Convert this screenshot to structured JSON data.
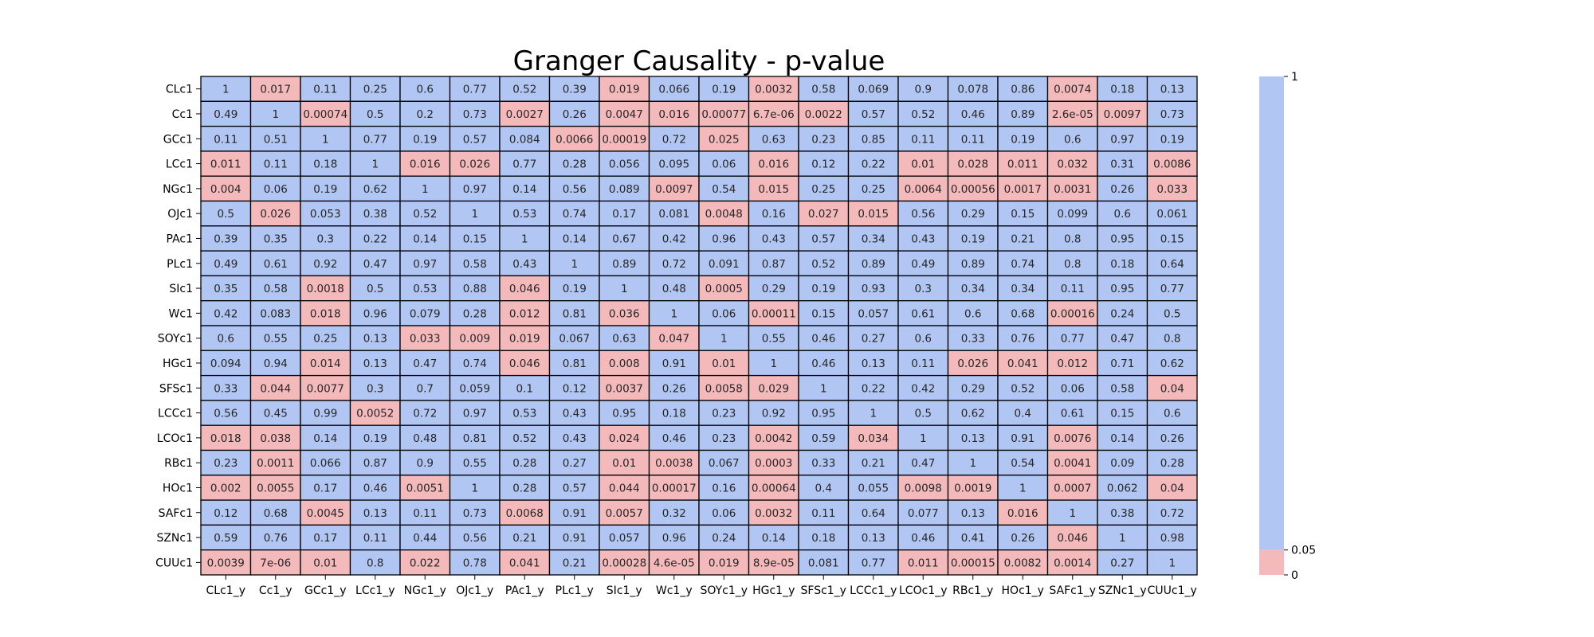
{
  "chart_data": {
    "type": "heatmap",
    "title": "Granger Causality - p-value",
    "xlabel": "",
    "ylabel": "",
    "row_labels": [
      "CLc1",
      "Cc1",
      "GCc1",
      "LCc1",
      "NGc1",
      "OJc1",
      "PAc1",
      "PLc1",
      "SIc1",
      "Wc1",
      "SOYc1",
      "HGc1",
      "SFSc1",
      "LCCc1",
      "LCOc1",
      "RBc1",
      "HOc1",
      "SAFc1",
      "SZNc1",
      "CUUc1"
    ],
    "col_labels": [
      "CLc1_y",
      "Cc1_y",
      "GCc1_y",
      "LCc1_y",
      "NGc1_y",
      "OJc1_y",
      "PAc1_y",
      "PLc1_y",
      "SIc1_y",
      "Wc1_y",
      "SOYc1_y",
      "HGc1_y",
      "SFSc1_y",
      "LCCc1_y",
      "LCOc1_y",
      "RBc1_y",
      "HOc1_y",
      "SAFc1_y",
      "SZNc1_y",
      "CUUc1_y"
    ],
    "values": [
      [
        "1",
        "0.017",
        "0.11",
        "0.25",
        "0.6",
        "0.77",
        "0.52",
        "0.39",
        "0.019",
        "0.066",
        "0.19",
        "0.0032",
        "0.58",
        "0.069",
        "0.9",
        "0.078",
        "0.86",
        "0.0074",
        "0.18",
        "0.13"
      ],
      [
        "0.49",
        "1",
        "0.00074",
        "0.5",
        "0.2",
        "0.73",
        "0.0027",
        "0.26",
        "0.0047",
        "0.016",
        "0.00077",
        "6.7e-06",
        "0.0022",
        "0.57",
        "0.52",
        "0.46",
        "0.89",
        "2.6e-05",
        "0.0097",
        "0.73"
      ],
      [
        "0.11",
        "0.51",
        "1",
        "0.77",
        "0.19",
        "0.57",
        "0.084",
        "0.0066",
        "0.00019",
        "0.72",
        "0.025",
        "0.63",
        "0.23",
        "0.85",
        "0.11",
        "0.11",
        "0.19",
        "0.6",
        "0.97",
        "0.19"
      ],
      [
        "0.011",
        "0.11",
        "0.18",
        "1",
        "0.016",
        "0.026",
        "0.77",
        "0.28",
        "0.056",
        "0.095",
        "0.06",
        "0.016",
        "0.12",
        "0.22",
        "0.01",
        "0.028",
        "0.011",
        "0.032",
        "0.31",
        "0.0086"
      ],
      [
        "0.004",
        "0.06",
        "0.19",
        "0.62",
        "1",
        "0.97",
        "0.14",
        "0.56",
        "0.089",
        "0.0097",
        "0.54",
        "0.015",
        "0.25",
        "0.25",
        "0.0064",
        "0.00056",
        "0.0017",
        "0.0031",
        "0.26",
        "0.033"
      ],
      [
        "0.5",
        "0.026",
        "0.053",
        "0.38",
        "0.52",
        "1",
        "0.53",
        "0.74",
        "0.17",
        "0.081",
        "0.0048",
        "0.16",
        "0.027",
        "0.015",
        "0.56",
        "0.29",
        "0.15",
        "0.099",
        "0.6",
        "0.061"
      ],
      [
        "0.39",
        "0.35",
        "0.3",
        "0.22",
        "0.14",
        "0.15",
        "1",
        "0.14",
        "0.67",
        "0.42",
        "0.96",
        "0.43",
        "0.57",
        "0.34",
        "0.43",
        "0.19",
        "0.21",
        "0.8",
        "0.95",
        "0.15"
      ],
      [
        "0.49",
        "0.61",
        "0.92",
        "0.47",
        "0.97",
        "0.58",
        "0.43",
        "1",
        "0.89",
        "0.72",
        "0.091",
        "0.87",
        "0.52",
        "0.89",
        "0.49",
        "0.89",
        "0.74",
        "0.8",
        "0.18",
        "0.64"
      ],
      [
        "0.35",
        "0.58",
        "0.0018",
        "0.5",
        "0.53",
        "0.88",
        "0.046",
        "0.19",
        "1",
        "0.48",
        "0.0005",
        "0.29",
        "0.19",
        "0.93",
        "0.3",
        "0.34",
        "0.34",
        "0.11",
        "0.95",
        "0.77"
      ],
      [
        "0.42",
        "0.083",
        "0.018",
        "0.96",
        "0.079",
        "0.28",
        "0.012",
        "0.81",
        "0.036",
        "1",
        "0.06",
        "0.00011",
        "0.15",
        "0.057",
        "0.61",
        "0.6",
        "0.68",
        "0.00016",
        "0.24",
        "0.5"
      ],
      [
        "0.6",
        "0.55",
        "0.25",
        "0.13",
        "0.033",
        "0.009",
        "0.019",
        "0.067",
        "0.63",
        "0.047",
        "1",
        "0.55",
        "0.46",
        "0.27",
        "0.6",
        "0.33",
        "0.76",
        "0.77",
        "0.47",
        "0.8"
      ],
      [
        "0.094",
        "0.94",
        "0.014",
        "0.13",
        "0.47",
        "0.74",
        "0.046",
        "0.81",
        "0.008",
        "0.91",
        "0.01",
        "1",
        "0.46",
        "0.13",
        "0.11",
        "0.026",
        "0.041",
        "0.012",
        "0.71",
        "0.62"
      ],
      [
        "0.33",
        "0.044",
        "0.0077",
        "0.3",
        "0.7",
        "0.059",
        "0.1",
        "0.12",
        "0.0037",
        "0.26",
        "0.0058",
        "0.029",
        "1",
        "0.22",
        "0.42",
        "0.29",
        "0.52",
        "0.06",
        "0.58",
        "0.04"
      ],
      [
        "0.56",
        "0.45",
        "0.99",
        "0.0052",
        "0.72",
        "0.97",
        "0.53",
        "0.43",
        "0.95",
        "0.18",
        "0.23",
        "0.92",
        "0.95",
        "1",
        "0.5",
        "0.62",
        "0.4",
        "0.61",
        "0.15",
        "0.6"
      ],
      [
        "0.018",
        "0.038",
        "0.14",
        "0.19",
        "0.48",
        "0.81",
        "0.52",
        "0.43",
        "0.024",
        "0.46",
        "0.23",
        "0.0042",
        "0.59",
        "0.034",
        "1",
        "0.13",
        "0.91",
        "0.0076",
        "0.14",
        "0.26"
      ],
      [
        "0.23",
        "0.0011",
        "0.066",
        "0.87",
        "0.9",
        "0.55",
        "0.28",
        "0.27",
        "0.01",
        "0.0038",
        "0.067",
        "0.0003",
        "0.33",
        "0.21",
        "0.47",
        "1",
        "0.54",
        "0.0041",
        "0.09",
        "0.28"
      ],
      [
        "0.002",
        "0.0055",
        "0.17",
        "0.46",
        "0.0051",
        "1",
        "0.28",
        "0.57",
        "0.044",
        "0.00017",
        "0.16",
        "0.00064",
        "0.4",
        "0.055",
        "0.0098",
        "0.0019",
        "1",
        "0.0007",
        "0.062",
        "0.04"
      ],
      [
        "0.12",
        "0.68",
        "0.0045",
        "0.13",
        "0.11",
        "0.73",
        "0.0068",
        "0.91",
        "0.0057",
        "0.32",
        "0.06",
        "0.0032",
        "0.11",
        "0.64",
        "0.077",
        "0.13",
        "0.016",
        "1",
        "0.38",
        "0.72"
      ],
      [
        "0.59",
        "0.76",
        "0.17",
        "0.11",
        "0.44",
        "0.56",
        "0.21",
        "0.91",
        "0.057",
        "0.96",
        "0.24",
        "0.14",
        "0.18",
        "0.13",
        "0.46",
        "0.41",
        "0.26",
        "0.046",
        "1",
        "0.98"
      ],
      [
        "0.0039",
        "7e-06",
        "0.01",
        "0.8",
        "0.022",
        "0.78",
        "0.041",
        "0.21",
        "0.00028",
        "4.6e-05",
        "0.019",
        "8.9e-05",
        "0.081",
        "0.77",
        "0.011",
        "0.00015",
        "0.0082",
        "0.0014",
        "0.27",
        "1"
      ]
    ],
    "threshold": 0.05,
    "colors": {
      "below_threshold": "#f4b9bb",
      "above_threshold": "#b1c6f2",
      "cell_border": "#000000"
    },
    "colorbar": {
      "ticks": [
        "1",
        "0.05",
        "0"
      ],
      "tick_values": [
        1,
        0.05,
        0
      ]
    },
    "grid": true
  }
}
